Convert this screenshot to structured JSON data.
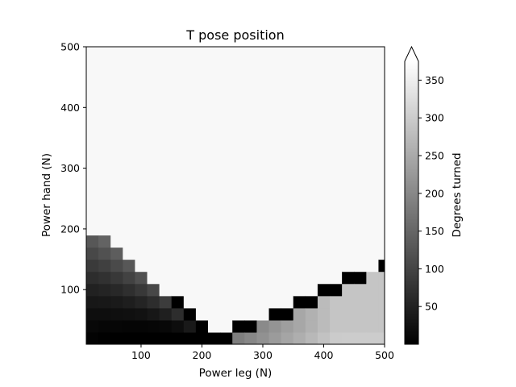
{
  "chart_data": {
    "type": "heatmap",
    "title": "T pose position",
    "xlabel": "Power leg (N)",
    "ylabel": "Power hand (N)",
    "xlim": [
      10,
      500
    ],
    "ylim": [
      10,
      500
    ],
    "x_ticks": [
      100,
      200,
      300,
      400,
      500
    ],
    "y_ticks": [
      100,
      200,
      300,
      400,
      500
    ],
    "grid": false,
    "colormap": "gray",
    "colorbar": {
      "label": "Degrees turned",
      "range": [
        0,
        375
      ],
      "ticks": [
        50,
        100,
        150,
        200,
        250,
        300,
        350
      ],
      "extend": "max"
    },
    "cell_size": 20,
    "regions": {
      "background_value": 365,
      "left_lobe": {
        "description_values": "dark gradient near low hand force / low leg force",
        "min": 5,
        "max": 150
      },
      "right_lobe": {
        "description_values": "light gray gradient for leg > 250",
        "min": 160,
        "max": 300
      },
      "black_band_value": 0
    }
  }
}
